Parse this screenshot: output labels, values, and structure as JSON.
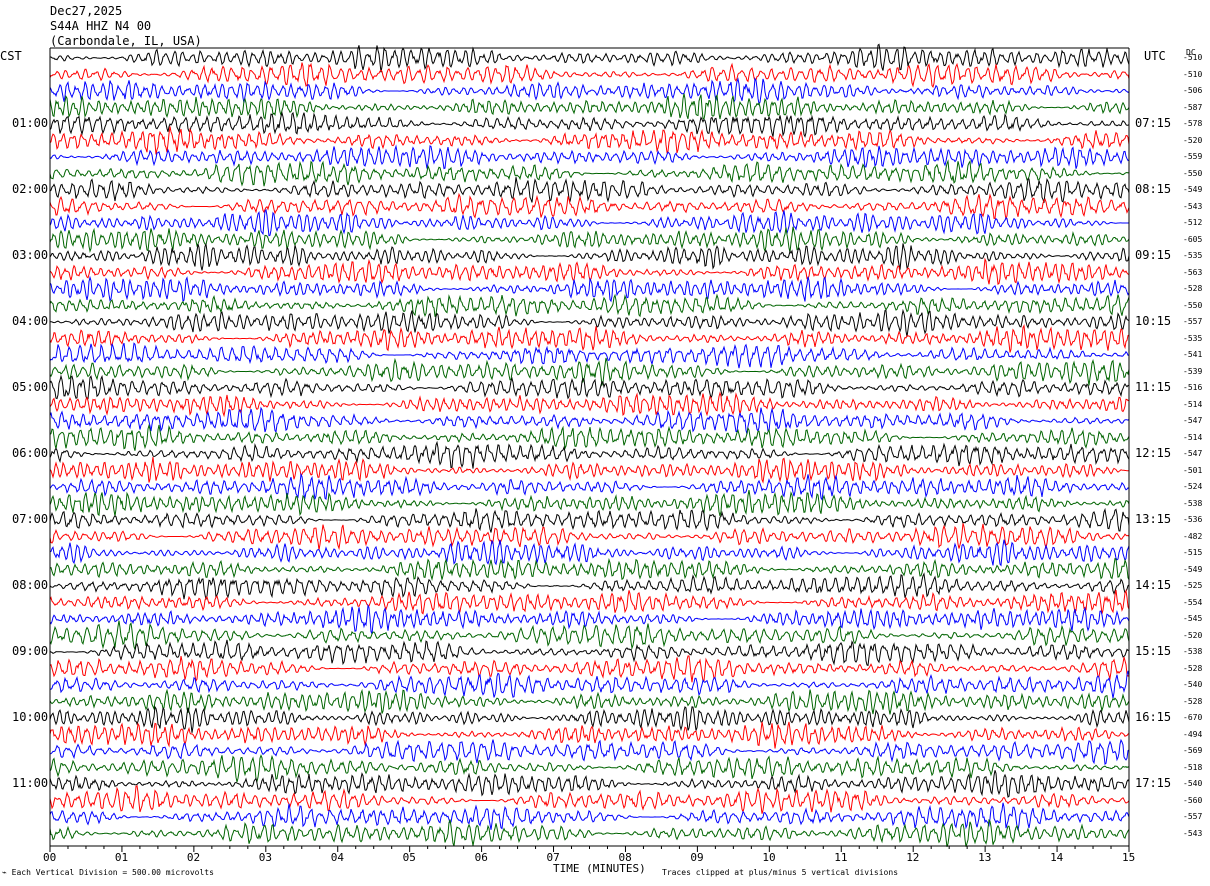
{
  "header": {
    "date": "Dec27,2025",
    "station": "S44A HHZ N4 00",
    "location": "(Carbondale, IL, USA)"
  },
  "axes": {
    "left_zone": "CST",
    "right_zone": "UTC",
    "dc_header": "DC",
    "xlabel": "TIME (MINUTES)",
    "x_ticks": [
      "00",
      "01",
      "02",
      "03",
      "04",
      "05",
      "06",
      "07",
      "08",
      "09",
      "10",
      "11",
      "12",
      "13",
      "14",
      "15"
    ]
  },
  "footer": {
    "scale_note": "Each Vertical Division =  500.00 microvolts",
    "clip_note": "Traces clipped at plus/minus 5 vertical divisions"
  },
  "colors": [
    "#000000",
    "#ff0000",
    "#0000ff",
    "#006400"
  ],
  "chart_data": {
    "type": "line",
    "title": "S44A HHZ N4 00",
    "xlabel": "TIME (MINUTES)",
    "xlim": [
      0,
      15
    ],
    "left_hour_labels": [
      "01:00",
      "02:00",
      "03:00",
      "04:00",
      "05:00",
      "06:00",
      "07:00",
      "08:00",
      "09:00",
      "10:00",
      "11:00"
    ],
    "right_hour_labels": [
      "07:15",
      "08:15",
      "09:15",
      "10:15",
      "11:15",
      "12:15",
      "13:15",
      "14:15",
      "15:15",
      "16:15",
      "17:15"
    ],
    "dc_offsets": [
      -510,
      -510,
      -506,
      -587,
      -578,
      -520,
      -559,
      -550,
      -549,
      -543,
      -512,
      -605,
      -535,
      -563,
      -528,
      -550,
      -557,
      -535,
      -541,
      -539,
      -516,
      -514,
      -547,
      -514,
      -547,
      -501,
      -524,
      -538,
      -536,
      -482,
      -515,
      -549,
      -525,
      -554,
      -545,
      -520,
      -538,
      -528,
      -540,
      -528,
      -670,
      -494,
      -569,
      -518,
      -540,
      -560,
      -557,
      -543
    ],
    "trace_count": 48,
    "traces_per_hour": 4,
    "minutes_per_trace": 15
  }
}
